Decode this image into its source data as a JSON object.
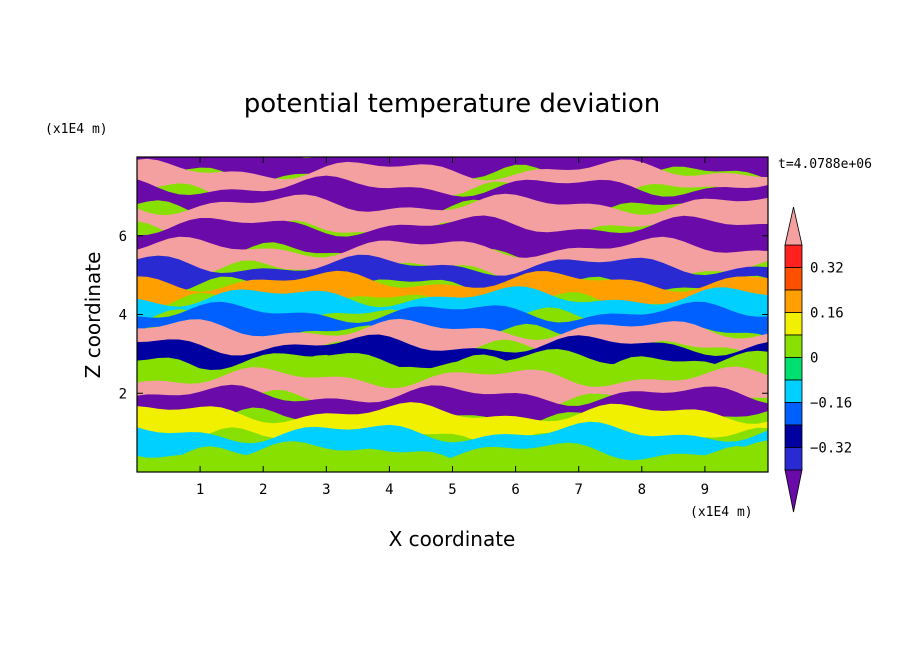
{
  "chart_data": {
    "type": "heatmap",
    "title": "potential temperature deviation",
    "xlabel": "X coordinate",
    "ylabel": "Z coordinate",
    "x_unit": "(x1E4 m)",
    "z_unit": "(x1E4 m)",
    "time_label": "t=4.0788e+06",
    "xlim": [
      0,
      10
    ],
    "ylim": [
      0,
      8
    ],
    "x_ticks": [
      "1",
      "2",
      "3",
      "4",
      "5",
      "6",
      "7",
      "8",
      "9"
    ],
    "y_ticks": [
      "2",
      "4",
      "6"
    ],
    "colorbar": {
      "levels": [
        -0.4,
        -0.32,
        -0.24,
        -0.16,
        -0.08,
        0,
        0.08,
        0.16,
        0.24,
        0.32,
        0.4
      ],
      "labels": [
        "0.32",
        "0.16",
        "0",
        "−0.16",
        "−0.32"
      ],
      "colors": [
        "#6a0aa8",
        "#2a2ad2",
        "#0000a0",
        "#0060ff",
        "#00d0ff",
        "#00e070",
        "#88e000",
        "#f0f000",
        "#ffa000",
        "#ff5000",
        "#ff2020",
        "#f5a0a0"
      ],
      "extend": "both"
    },
    "bands": [
      {
        "z": 7.85,
        "class": 0
      },
      {
        "z": 7.4,
        "class": 11
      },
      {
        "z": 7.0,
        "class": 0
      },
      {
        "z": 6.5,
        "class": 11
      },
      {
        "z": 5.9,
        "class": 0
      },
      {
        "z": 5.4,
        "class": 11
      },
      {
        "z": 5.0,
        "class": 1
      },
      {
        "z": 4.6,
        "class": 8
      },
      {
        "z": 4.2,
        "class": 4
      },
      {
        "z": 3.8,
        "class": 3
      },
      {
        "z": 3.35,
        "class": 11
      },
      {
        "z": 3.0,
        "class": 2
      },
      {
        "z": 2.6,
        "class": 6
      },
      {
        "z": 2.1,
        "class": 11
      },
      {
        "z": 1.7,
        "class": 0
      },
      {
        "z": 1.2,
        "class": 7
      },
      {
        "z": 0.7,
        "class": 4
      },
      {
        "z": 0.25,
        "class": 6
      }
    ]
  }
}
